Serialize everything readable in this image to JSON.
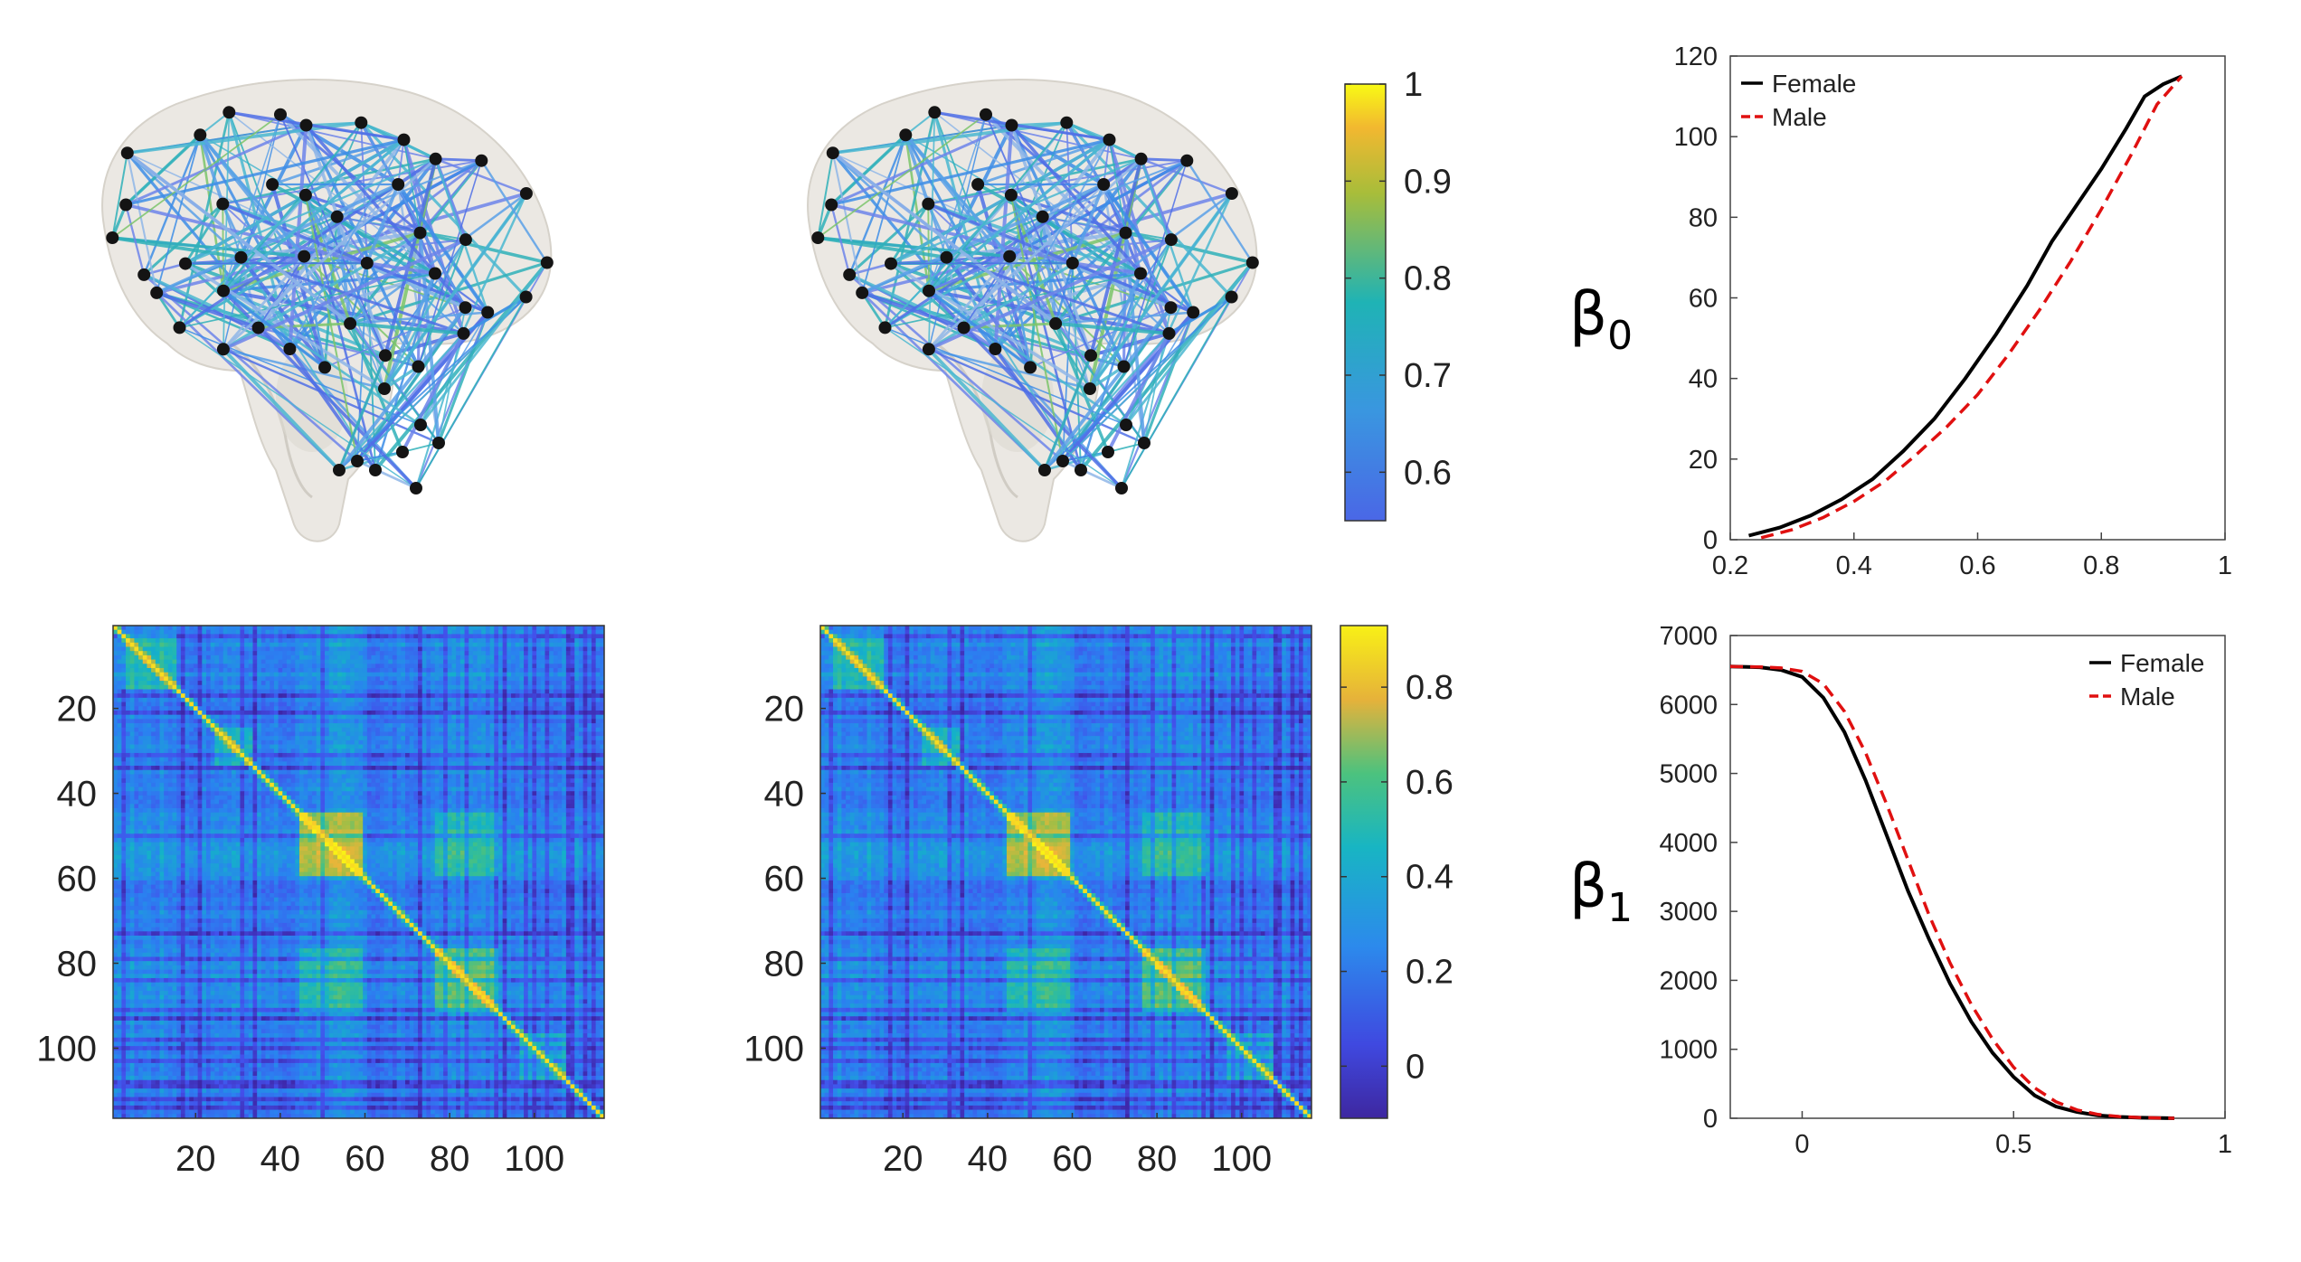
{
  "colors": {
    "female": "#000000",
    "male": "#e01010",
    "brain_fill": "#e7e4de",
    "node": "#141414"
  },
  "top_colorbar": {
    "ticks": [
      "1",
      "0.9",
      "0.8",
      "0.7",
      "0.6"
    ],
    "values": [
      1,
      0.9,
      0.8,
      0.7,
      0.6
    ],
    "range": [
      0.55,
      1.0
    ]
  },
  "bottom_colorbar": {
    "ticks": [
      "0.8",
      "0.6",
      "0.4",
      "0.2",
      "0"
    ],
    "values": [
      0.8,
      0.6,
      0.4,
      0.2,
      0
    ],
    "range": [
      -0.11,
      0.93
    ]
  },
  "matrix_axes": {
    "y_ticks": [
      "20",
      "40",
      "60",
      "80",
      "100"
    ],
    "x_ticks": [
      "20",
      "40",
      "60",
      "80",
      "100"
    ],
    "size": 116
  },
  "beta_labels": {
    "beta0_symbol": "β",
    "beta0_sub": "0",
    "beta1_symbol": "β",
    "beta1_sub": "1"
  },
  "chart_data": [
    {
      "type": "line",
      "name": "beta0",
      "xlim": [
        0.2,
        1
      ],
      "ylim": [
        0,
        120
      ],
      "x_ticks": [
        "0.2",
        "0.4",
        "0.6",
        "0.8",
        "1"
      ],
      "y_ticks": [
        "0",
        "20",
        "40",
        "60",
        "80",
        "100",
        "120"
      ],
      "legend": [
        "Female",
        "Male"
      ],
      "legend_position": "top-left",
      "series": [
        {
          "name": "Female",
          "style": "solid",
          "x": [
            0.23,
            0.28,
            0.33,
            0.38,
            0.43,
            0.48,
            0.53,
            0.58,
            0.63,
            0.68,
            0.72,
            0.76,
            0.8,
            0.84,
            0.87,
            0.9,
            0.93
          ],
          "y": [
            1,
            3,
            6,
            10,
            15,
            22,
            30,
            40,
            51,
            63,
            74,
            83,
            92,
            102,
            110,
            113,
            115
          ]
        },
        {
          "name": "Male",
          "style": "dashed",
          "x": [
            0.25,
            0.3,
            0.35,
            0.4,
            0.45,
            0.5,
            0.55,
            0.6,
            0.65,
            0.7,
            0.75,
            0.8,
            0.85,
            0.89,
            0.93
          ],
          "y": [
            0.5,
            2.5,
            5.5,
            9.5,
            14.5,
            21,
            28,
            36,
            46,
            57,
            69,
            82,
            96,
            108,
            115
          ]
        }
      ]
    },
    {
      "type": "line",
      "name": "beta1",
      "xlim": [
        -0.17,
        1
      ],
      "ylim": [
        0,
        7000
      ],
      "x_ticks": [
        "0",
        "0.5",
        "1"
      ],
      "x_tick_values": [
        0,
        0.5,
        1
      ],
      "y_ticks": [
        "0",
        "1000",
        "2000",
        "3000",
        "4000",
        "5000",
        "6000",
        "7000"
      ],
      "legend": [
        "Female",
        "Male"
      ],
      "legend_position": "top-right",
      "series": [
        {
          "name": "Female",
          "style": "solid",
          "x": [
            -0.17,
            -0.1,
            -0.05,
            0.0,
            0.05,
            0.1,
            0.15,
            0.2,
            0.25,
            0.3,
            0.35,
            0.4,
            0.45,
            0.5,
            0.55,
            0.6,
            0.65,
            0.7,
            0.75,
            0.8,
            0.85,
            0.88
          ],
          "y": [
            6550,
            6540,
            6500,
            6400,
            6100,
            5600,
            4900,
            4100,
            3300,
            2600,
            1950,
            1400,
            950,
            600,
            330,
            170,
            90,
            40,
            20,
            8,
            3,
            0
          ]
        },
        {
          "name": "Male",
          "style": "dashed",
          "x": [
            -0.17,
            -0.1,
            -0.05,
            0.0,
            0.05,
            0.1,
            0.15,
            0.2,
            0.25,
            0.3,
            0.35,
            0.4,
            0.45,
            0.5,
            0.55,
            0.6,
            0.65,
            0.7,
            0.75,
            0.8,
            0.85,
            0.88
          ],
          "y": [
            6550,
            6545,
            6530,
            6480,
            6300,
            5900,
            5300,
            4550,
            3750,
            2950,
            2250,
            1650,
            1150,
            740,
            440,
            240,
            120,
            55,
            25,
            10,
            3,
            0
          ]
        }
      ]
    }
  ]
}
